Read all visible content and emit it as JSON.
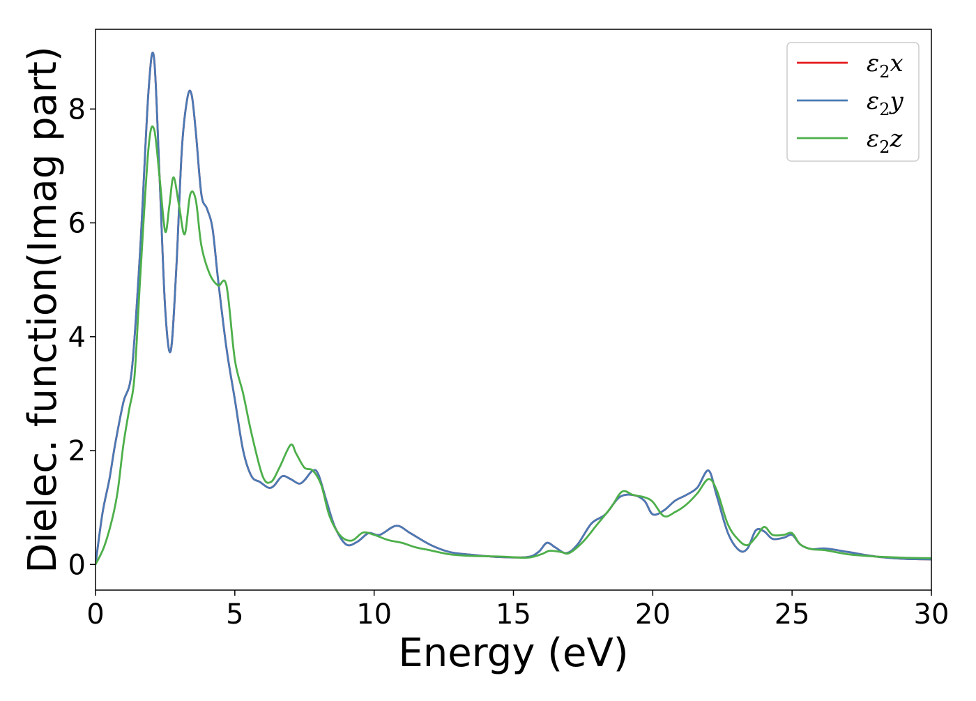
{
  "chart_data": {
    "type": "line",
    "title": "",
    "xlabel": "Energy (eV)",
    "ylabel": "Dielec. function(Imag part)",
    "xlim": [
      0,
      30
    ],
    "ylim": [
      -0.45,
      9.4
    ],
    "xticks": [
      0,
      5,
      10,
      15,
      20,
      25,
      30
    ],
    "xtick_labels": [
      "0",
      "5",
      "10",
      "15",
      "20",
      "25",
      "30"
    ],
    "yticks": [
      0,
      2,
      4,
      6,
      8
    ],
    "ytick_labels": [
      "0",
      "2",
      "4",
      "6",
      "8"
    ],
    "grid": false,
    "legend_position": "top-right",
    "series": [
      {
        "name": "ε₂x",
        "legend_base": "ε",
        "legend_sub": "2",
        "legend_suffix": "x",
        "color": "#e41a1c",
        "x": [
          0,
          0.25,
          0.5,
          0.7,
          1.0,
          1.3,
          1.6,
          1.9,
          2.1,
          2.3,
          2.5,
          2.7,
          2.9,
          3.1,
          3.3,
          3.45,
          3.6,
          3.8,
          4.0,
          4.2,
          4.4,
          4.7,
          5.0,
          5.3,
          5.6,
          5.9,
          6.2,
          6.4,
          6.7,
          7.0,
          7.3,
          7.5,
          7.8,
          8.0,
          8.3,
          8.6,
          9.0,
          9.4,
          9.8,
          10.2,
          10.8,
          11.3,
          12.0,
          12.7,
          13.5,
          14.5,
          15.5,
          15.9,
          16.2,
          16.5,
          16.9,
          17.3,
          17.8,
          18.3,
          18.8,
          19.3,
          19.7,
          20.0,
          20.4,
          20.8,
          21.2,
          21.6,
          22.0,
          22.3,
          22.7,
          23.1,
          23.4,
          23.7,
          24.0,
          24.3,
          24.7,
          25.0,
          25.3,
          25.7,
          26.2,
          27.0,
          28.0,
          29.0,
          30.0
        ],
        "y": [
          0.0,
          0.9,
          1.5,
          2.1,
          2.85,
          3.4,
          5.5,
          8.3,
          8.9,
          6.8,
          4.5,
          3.75,
          5.2,
          7.3,
          8.2,
          8.25,
          7.6,
          6.5,
          6.25,
          5.9,
          5.0,
          3.8,
          2.9,
          2.0,
          1.55,
          1.45,
          1.35,
          1.38,
          1.55,
          1.5,
          1.42,
          1.48,
          1.65,
          1.58,
          1.1,
          0.65,
          0.35,
          0.4,
          0.55,
          0.52,
          0.68,
          0.55,
          0.35,
          0.22,
          0.17,
          0.13,
          0.13,
          0.22,
          0.38,
          0.3,
          0.2,
          0.35,
          0.72,
          0.88,
          1.18,
          1.22,
          1.12,
          0.88,
          0.95,
          1.12,
          1.22,
          1.35,
          1.65,
          1.2,
          0.55,
          0.25,
          0.28,
          0.6,
          0.58,
          0.45,
          0.47,
          0.52,
          0.35,
          0.27,
          0.28,
          0.22,
          0.14,
          0.1,
          0.09
        ]
      },
      {
        "name": "ε₂y",
        "legend_base": "ε",
        "legend_sub": "2",
        "legend_suffix": "y",
        "color": "#4a7ab5",
        "x": [
          0,
          0.25,
          0.5,
          0.7,
          1.0,
          1.3,
          1.6,
          1.9,
          2.1,
          2.3,
          2.5,
          2.7,
          2.9,
          3.1,
          3.3,
          3.45,
          3.6,
          3.8,
          4.0,
          4.2,
          4.4,
          4.7,
          5.0,
          5.3,
          5.6,
          5.9,
          6.2,
          6.4,
          6.7,
          7.0,
          7.3,
          7.5,
          7.8,
          8.0,
          8.3,
          8.6,
          9.0,
          9.4,
          9.8,
          10.2,
          10.8,
          11.3,
          12.0,
          12.7,
          13.5,
          14.5,
          15.5,
          15.9,
          16.2,
          16.5,
          16.9,
          17.3,
          17.8,
          18.3,
          18.8,
          19.3,
          19.7,
          20.0,
          20.4,
          20.8,
          21.2,
          21.6,
          22.0,
          22.3,
          22.7,
          23.1,
          23.4,
          23.7,
          24.0,
          24.3,
          24.7,
          25.0,
          25.3,
          25.7,
          26.2,
          27.0,
          28.0,
          29.0,
          30.0
        ],
        "y": [
          0.0,
          0.9,
          1.5,
          2.1,
          2.85,
          3.4,
          5.5,
          8.3,
          8.9,
          6.8,
          4.5,
          3.75,
          5.2,
          7.3,
          8.2,
          8.25,
          7.6,
          6.5,
          6.25,
          5.9,
          5.0,
          3.8,
          2.9,
          2.0,
          1.55,
          1.45,
          1.35,
          1.38,
          1.55,
          1.5,
          1.42,
          1.48,
          1.65,
          1.58,
          1.1,
          0.65,
          0.35,
          0.4,
          0.55,
          0.52,
          0.68,
          0.55,
          0.35,
          0.22,
          0.17,
          0.13,
          0.13,
          0.22,
          0.38,
          0.3,
          0.2,
          0.35,
          0.72,
          0.88,
          1.18,
          1.22,
          1.12,
          0.88,
          0.95,
          1.12,
          1.22,
          1.35,
          1.65,
          1.2,
          0.55,
          0.25,
          0.28,
          0.6,
          0.58,
          0.45,
          0.47,
          0.52,
          0.35,
          0.27,
          0.28,
          0.22,
          0.14,
          0.1,
          0.09
        ]
      },
      {
        "name": "ε₂z",
        "legend_base": "ε",
        "legend_sub": "2",
        "legend_suffix": "z",
        "color": "#4daf4a",
        "x": [
          0,
          0.3,
          0.6,
          0.8,
          1.0,
          1.2,
          1.4,
          1.6,
          1.9,
          2.1,
          2.3,
          2.5,
          2.65,
          2.8,
          3.0,
          3.2,
          3.4,
          3.6,
          3.8,
          4.1,
          4.4,
          4.7,
          5.0,
          5.3,
          5.6,
          6.0,
          6.3,
          6.6,
          7.0,
          7.2,
          7.5,
          7.8,
          8.1,
          8.4,
          8.8,
          9.2,
          9.6,
          10.0,
          10.5,
          11.0,
          11.5,
          12.0,
          12.7,
          13.5,
          14.5,
          15.5,
          16.0,
          16.3,
          16.7,
          17.0,
          17.5,
          18.0,
          18.5,
          18.9,
          19.3,
          19.7,
          20.0,
          20.4,
          20.8,
          21.2,
          21.6,
          22.0,
          22.3,
          22.7,
          23.1,
          23.4,
          23.7,
          24.0,
          24.3,
          24.7,
          25.0,
          25.3,
          25.7,
          26.2,
          27.0,
          28.0,
          29.0,
          30.0
        ],
        "y": [
          0.0,
          0.3,
          0.8,
          1.3,
          2.1,
          2.7,
          3.3,
          5.0,
          7.3,
          7.65,
          6.8,
          5.85,
          6.3,
          6.8,
          6.3,
          5.8,
          6.5,
          6.4,
          5.6,
          5.1,
          4.9,
          4.9,
          3.6,
          3.0,
          2.3,
          1.55,
          1.45,
          1.7,
          2.1,
          1.95,
          1.7,
          1.65,
          1.4,
          0.85,
          0.5,
          0.42,
          0.56,
          0.52,
          0.43,
          0.38,
          0.3,
          0.25,
          0.18,
          0.15,
          0.14,
          0.12,
          0.18,
          0.24,
          0.22,
          0.2,
          0.4,
          0.7,
          1.0,
          1.28,
          1.22,
          1.18,
          1.1,
          0.85,
          0.92,
          1.05,
          1.25,
          1.5,
          1.3,
          0.7,
          0.42,
          0.34,
          0.48,
          0.66,
          0.52,
          0.52,
          0.55,
          0.35,
          0.27,
          0.25,
          0.18,
          0.14,
          0.12,
          0.11
        ]
      }
    ]
  }
}
